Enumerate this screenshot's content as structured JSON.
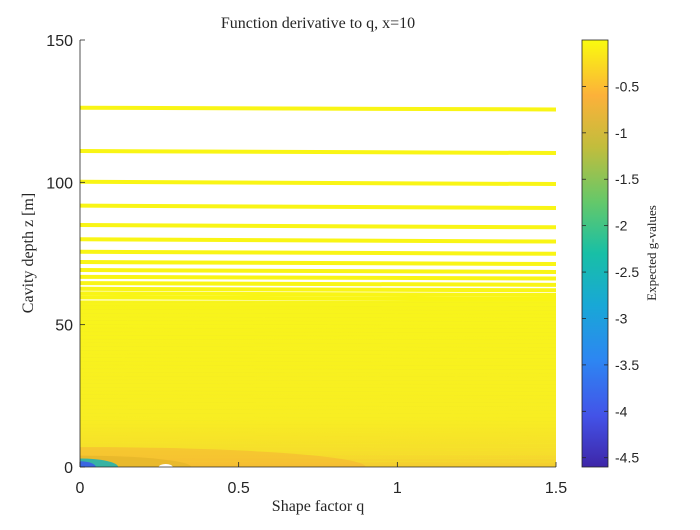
{
  "chart_data": {
    "type": "heatmap",
    "title": "Function derivative to q, x=10",
    "xlabel": "Shape factor q",
    "ylabel": "Cavity depth z [m]",
    "xlim": [
      0,
      1.5
    ],
    "ylim": [
      0,
      150
    ],
    "x_ticks": [
      0,
      0.5,
      1,
      1.5
    ],
    "x_tick_labels": [
      "0",
      "0.5",
      "1",
      "1.5"
    ],
    "y_ticks": [
      0,
      50,
      100,
      150
    ],
    "y_tick_labels": [
      "0",
      "50",
      "100",
      "150"
    ],
    "colormap": "parula",
    "colorbar": {
      "label": "Expected g-values",
      "lim": [
        -4.6,
        0
      ],
      "ticks": [
        -0.5,
        -1,
        -1.5,
        -2,
        -2.5,
        -3,
        -3.5,
        -4,
        -4.5
      ],
      "tick_labels": [
        "-0.5",
        "-1",
        "-1.5",
        "-2",
        "-2.5",
        "-3",
        "-3.5",
        "-4",
        "-4.5"
      ]
    },
    "contour_bands": [
      {
        "z_at_q0": 126.2,
        "z_at_q1_5": 125.6,
        "value": -0.02
      },
      {
        "z_at_q0": 111.0,
        "z_at_q1_5": 110.3,
        "value": -0.02
      },
      {
        "z_at_q0": 100.2,
        "z_at_q1_5": 99.4,
        "value": -0.02
      },
      {
        "z_at_q0": 91.8,
        "z_at_q1_5": 91.0,
        "value": -0.02
      },
      {
        "z_at_q0": 85.0,
        "z_at_q1_5": 84.2,
        "value": -0.02
      },
      {
        "z_at_q0": 80.0,
        "z_at_q1_5": 79.2,
        "value": -0.02
      },
      {
        "z_at_q0": 75.6,
        "z_at_q1_5": 74.9,
        "value": -0.02
      },
      {
        "z_at_q0": 72.0,
        "z_at_q1_5": 71.3,
        "value": -0.02
      },
      {
        "z_at_q0": 69.2,
        "z_at_q1_5": 68.5,
        "value": -0.02
      },
      {
        "z_at_q0": 66.8,
        "z_at_q1_5": 66.2,
        "value": -0.02
      },
      {
        "z_at_q0": 64.6,
        "z_at_q1_5": 64.0,
        "value": -0.02
      },
      {
        "z_at_q0": 62.6,
        "z_at_q1_5": 62.1,
        "value": -0.02
      },
      {
        "z_at_q0": 61.0,
        "z_at_q1_5": 60.4,
        "value": -0.02
      },
      {
        "z_at_q0": 59.6,
        "z_at_q1_5": 59.0,
        "value": -0.02
      }
    ],
    "filled_region": {
      "z_min": 0,
      "z_max": 58.5,
      "value": -0.05
    },
    "low_value_regions": [
      {
        "q_range": [
          0.0,
          0.9
        ],
        "z_range": [
          0,
          7
        ],
        "value": -0.7,
        "note_color": "#f5b235"
      },
      {
        "q_range": [
          0.0,
          0.35
        ],
        "z_range": [
          0,
          4
        ],
        "value": -1.2,
        "note_color": "#e8b82b"
      },
      {
        "q_range": [
          0.0,
          0.12
        ],
        "z_range": [
          0,
          3
        ],
        "value": -2.5,
        "note_color": "#23b3b0"
      },
      {
        "q_range": [
          0.0,
          0.05
        ],
        "z_range": [
          0,
          2
        ],
        "value": -4.0,
        "note_color": "#3b5de8"
      }
    ],
    "grid": false
  }
}
